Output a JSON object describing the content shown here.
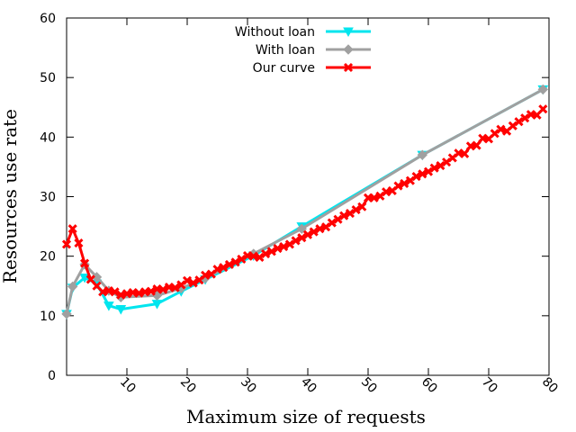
{
  "chart_data": {
    "type": "line",
    "title": "",
    "xlabel": "Maximum size of requests",
    "ylabel": "Resources use rate",
    "xlim": [
      0,
      80
    ],
    "ylim": [
      0,
      60
    ],
    "x_ticks": [
      10,
      20,
      30,
      40,
      50,
      60,
      70,
      80
    ],
    "y_ticks": [
      0,
      10,
      20,
      30,
      40,
      50,
      60
    ],
    "grid": false,
    "legend_position": "top-center",
    "series": [
      {
        "name": "Without loan",
        "color": "#00e5ee",
        "marker": "triangle-down",
        "x": [
          0,
          1,
          3,
          5,
          7,
          9,
          15,
          19,
          23,
          31,
          39,
          59,
          79
        ],
        "y": [
          10.3,
          14.7,
          16.4,
          15.4,
          11.7,
          11.1,
          12.0,
          14.1,
          16.1,
          20.1,
          25.0,
          37.0,
          48.0
        ]
      },
      {
        "name": "With loan",
        "color": "#a0a0a0",
        "marker": "diamond",
        "x": [
          0,
          1,
          3,
          5,
          7,
          9,
          15,
          19,
          23,
          31,
          39,
          59,
          79
        ],
        "y": [
          10.3,
          14.9,
          18.6,
          16.5,
          14.2,
          13.1,
          13.4,
          14.6,
          16.3,
          20.4,
          24.6,
          37.0,
          48.0
        ]
      },
      {
        "name": "Our curve",
        "color": "#ff0000",
        "marker": "x",
        "x": [
          0,
          1,
          2,
          3,
          4,
          5,
          6,
          7,
          8,
          9,
          10,
          11,
          12,
          13,
          14,
          15,
          16,
          17,
          18,
          19,
          20,
          21,
          22,
          23,
          24,
          25,
          26,
          27,
          28,
          29,
          30,
          31,
          32,
          33,
          34,
          35,
          36,
          37,
          38,
          39,
          40,
          41,
          42,
          43,
          44,
          45,
          46,
          47,
          48,
          49,
          50,
          51,
          52,
          53,
          54,
          55,
          56,
          57,
          58,
          59,
          60,
          61,
          62,
          63,
          64,
          65,
          66,
          67,
          68,
          69,
          70,
          71,
          72,
          73,
          74,
          75,
          76,
          77,
          78,
          79
        ],
        "y": [
          22.0,
          24.6,
          22.2,
          18.8,
          16.1,
          15.0,
          14.0,
          14.2,
          14.0,
          13.5,
          13.7,
          13.9,
          13.8,
          14.0,
          14.1,
          14.5,
          14.4,
          14.8,
          14.7,
          15.2,
          15.9,
          15.5,
          16.0,
          16.8,
          17.0,
          17.8,
          18.1,
          18.6,
          19.0,
          19.5,
          20.1,
          20.0,
          19.8,
          20.4,
          20.8,
          21.3,
          21.6,
          22.0,
          22.6,
          23.1,
          23.6,
          24.1,
          24.6,
          24.9,
          25.6,
          26.2,
          26.8,
          27.2,
          27.8,
          28.3,
          29.8,
          29.8,
          30.1,
          30.8,
          31.0,
          31.8,
          32.2,
          32.7,
          33.4,
          33.8,
          34.2,
          34.8,
          35.2,
          35.8,
          36.5,
          37.3,
          37.2,
          38.5,
          38.6,
          39.8,
          39.7,
          40.6,
          41.3,
          41.0,
          41.9,
          42.6,
          43.2,
          43.8,
          43.7,
          44.7
        ]
      }
    ]
  }
}
